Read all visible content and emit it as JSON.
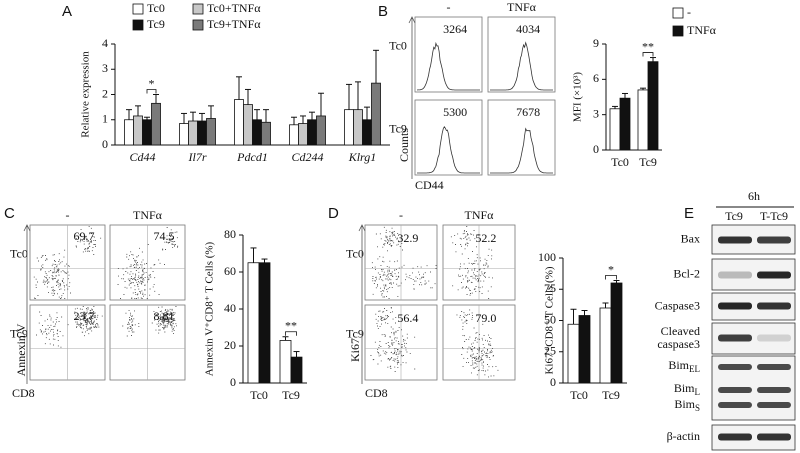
{
  "panels": [
    "A",
    "B",
    "C",
    "D",
    "E"
  ],
  "chart_data": [
    {
      "type": "bar",
      "y_label": "Relative expression",
      "categories": [
        "Cd44",
        "Il7r",
        "Pdcd1",
        "Cd244",
        "Klrg1"
      ],
      "series": [
        {
          "name": "Tc0",
          "color": "#ffffff",
          "values": [
            1.0,
            0.85,
            1.8,
            0.8,
            1.4
          ],
          "errors": [
            0.4,
            0.4,
            0.9,
            0.3,
            1.0
          ]
        },
        {
          "name": "Tc0+TNFα",
          "color": "#c8c8c8",
          "values": [
            1.15,
            0.95,
            1.6,
            0.85,
            1.4
          ],
          "errors": [
            0.4,
            0.35,
            0.6,
            0.3,
            1.1
          ]
        },
        {
          "name": "Tc9",
          "color": "#111111",
          "values": [
            1.0,
            0.95,
            1.0,
            1.0,
            1.0
          ],
          "errors": [
            0.1,
            0.3,
            0.4,
            0.3,
            0.5
          ]
        },
        {
          "name": "Tc9+TNFα",
          "color": "#7a7a7a",
          "values": [
            1.65,
            1.05,
            0.9,
            1.15,
            2.45
          ],
          "errors": [
            0.35,
            0.5,
            0.5,
            0.9,
            1.3
          ]
        }
      ],
      "ylim": [
        0,
        4
      ],
      "yticks": [
        0,
        1,
        2,
        3,
        4
      ],
      "annotations": [
        "*"
      ]
    },
    {
      "type": "bar",
      "y_label": "MFI (×10³)",
      "categories": [
        "Tc0",
        "Tc9"
      ],
      "series": [
        {
          "name": "-",
          "color": "#ffffff",
          "values": [
            3.5,
            5.1
          ],
          "errors": [
            0.2,
            0.15
          ]
        },
        {
          "name": "TNFα",
          "color": "#111111",
          "values": [
            4.4,
            7.5
          ],
          "errors": [
            0.4,
            0.35
          ]
        }
      ],
      "ylim": [
        0,
        9
      ],
      "yticks": [
        0,
        3,
        6,
        9
      ],
      "annotations": [
        "**"
      ]
    },
    {
      "type": "bar",
      "y_label": "Annexin V⁺CD8⁺ T Cells (%)",
      "categories": [
        "Tc0",
        "Tc9"
      ],
      "series": [
        {
          "name": "-",
          "color": "#ffffff",
          "values": [
            65,
            23
          ],
          "errors": [
            8,
            2
          ]
        },
        {
          "name": "TNFα",
          "color": "#111111",
          "values": [
            65,
            14
          ],
          "errors": [
            2,
            3
          ]
        }
      ],
      "ylim": [
        0,
        80
      ],
      "yticks": [
        0,
        20,
        40,
        60,
        80
      ],
      "annotations": [
        "**"
      ]
    },
    {
      "type": "bar",
      "y_label": "Ki67⁺CD8⁺ T Cells (%)",
      "categories": [
        "Tc0",
        "Tc9"
      ],
      "series": [
        {
          "name": "-",
          "color": "#ffffff",
          "values": [
            47,
            60
          ],
          "errors": [
            12,
            4
          ]
        },
        {
          "name": "TNFα",
          "color": "#111111",
          "values": [
            54,
            80
          ],
          "errors": [
            4,
            2
          ]
        }
      ],
      "ylim": [
        0,
        100
      ],
      "yticks": [
        0,
        25,
        50,
        75,
        100
      ],
      "annotations": [
        "*"
      ]
    }
  ],
  "flow_plots": [
    {
      "kind": "histogram",
      "columns": [
        "-",
        "TNFα"
      ],
      "rows": [
        "Tc0",
        "Tc9"
      ],
      "numbers": [
        [
          "3264",
          "4034"
        ],
        [
          "5300",
          "7678"
        ]
      ],
      "x_label": "CD44",
      "y_label": "Counts"
    },
    {
      "kind": "dots",
      "columns": [
        "-",
        "TNFα"
      ],
      "rows": [
        "Tc0",
        "Tc9"
      ],
      "numbers": [
        [
          "69.7",
          "74.5"
        ],
        [
          "23.7",
          "8.81"
        ]
      ],
      "x_label": "CD8",
      "y_label": "Annexin V"
    },
    {
      "kind": "dots",
      "columns": [
        "-",
        "TNFα"
      ],
      "rows": [
        "Tc0",
        "Tc9"
      ],
      "numbers": [
        [
          "32.9",
          "52.2"
        ],
        [
          "56.4",
          "79.0"
        ]
      ],
      "x_label": "CD8",
      "y_label": "Ki67"
    }
  ],
  "blot": {
    "header": "6h",
    "lanes": [
      "Tc9",
      "T-Tc9"
    ],
    "rows": [
      [
        "Bax"
      ],
      [
        "Bcl-2"
      ],
      [
        "Caspase3"
      ],
      [
        "Cleaved",
        "caspase3"
      ]
    ],
    "bim": {
      "base": "Bim",
      "subs": [
        "EL",
        "L",
        "S"
      ]
    },
    "loading": "β-actin"
  }
}
